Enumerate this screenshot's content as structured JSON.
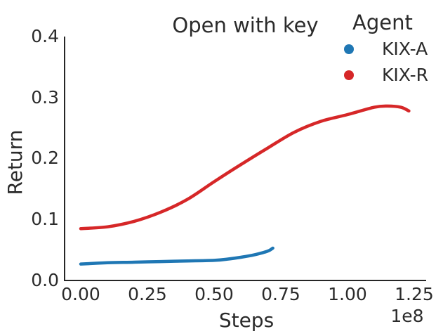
{
  "figure": {
    "title": "Open with key",
    "xlabel": "Steps",
    "ylabel": "Return",
    "x_offset_label": "1e8"
  },
  "legend": {
    "title": "Agent",
    "entries": [
      {
        "label": "KIX-A",
        "color": "#1f77b4"
      },
      {
        "label": "KIX-R",
        "color": "#d62728"
      }
    ]
  },
  "chart_data": {
    "type": "line",
    "title": "Open with key",
    "xlabel": "Steps",
    "ylabel": "Return",
    "x_unit_multiplier": "1e8",
    "xlim": [
      0,
      1.25
    ],
    "ylim": [
      0,
      0.4
    ],
    "grid": false,
    "legend_title": "Agent",
    "legend_position": "upper right, outside axes",
    "xticks": [
      0,
      0.25,
      0.5,
      0.75,
      1.0,
      1.25
    ],
    "xticklabels": [
      "0.00",
      "0.25",
      "0.50",
      "0.75",
      "1.00",
      "1.25"
    ],
    "yticks": [
      0,
      0.1,
      0.2,
      0.3,
      0.4
    ],
    "yticklabels": [
      "0.0",
      "0.1",
      "0.2",
      "0.3",
      "0.4"
    ],
    "series": [
      {
        "name": "KIX-A",
        "color": "#1f77b4",
        "x": [
          0.0,
          0.1,
          0.2,
          0.3,
          0.4,
          0.5,
          0.55,
          0.6,
          0.65,
          0.7,
          0.72
        ],
        "y": [
          0.027,
          0.029,
          0.03,
          0.031,
          0.032,
          0.033,
          0.035,
          0.038,
          0.042,
          0.048,
          0.053
        ]
      },
      {
        "name": "KIX-R",
        "color": "#d62728",
        "x": [
          0.0,
          0.1,
          0.2,
          0.3,
          0.4,
          0.5,
          0.6,
          0.7,
          0.8,
          0.9,
          1.0,
          1.1,
          1.15,
          1.2,
          1.23
        ],
        "y": [
          0.085,
          0.088,
          0.097,
          0.112,
          0.133,
          0.162,
          0.19,
          0.217,
          0.243,
          0.261,
          0.272,
          0.284,
          0.286,
          0.284,
          0.278
        ]
      }
    ]
  }
}
